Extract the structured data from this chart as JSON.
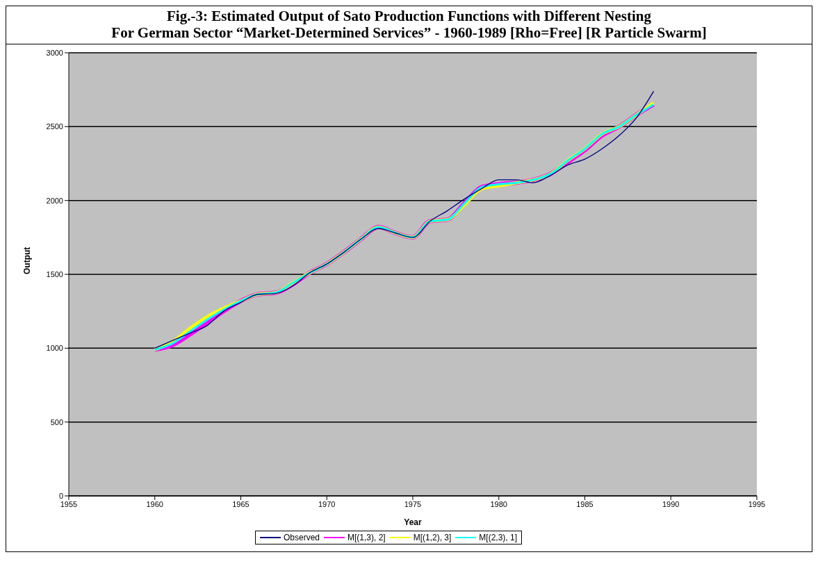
{
  "chart_data": {
    "type": "line",
    "title": "Fig.-3: Estimated Output of Sato Production Functions with Different Nesting",
    "subtitle": "For German Sector “Market-Determined Services” - 1960-1989 [Rho=Free] [R Particle Swarm]",
    "xlabel": "Year",
    "ylabel": "Output",
    "x": [
      1960,
      1961,
      1962,
      1963,
      1964,
      1965,
      1966,
      1967,
      1968,
      1969,
      1970,
      1971,
      1972,
      1973,
      1974,
      1975,
      1976,
      1977,
      1978,
      1979,
      1980,
      1981,
      1982,
      1983,
      1984,
      1985,
      1986,
      1987,
      1988,
      1989
    ],
    "series": [
      {
        "name": "Observed",
        "color": "#000080",
        "values": [
          1000,
          1050,
          1100,
          1150,
          1250,
          1310,
          1365,
          1370,
          1420,
          1510,
          1570,
          1650,
          1740,
          1810,
          1780,
          1750,
          1860,
          1930,
          2010,
          2080,
          2140,
          2140,
          2120,
          2170,
          2240,
          2280,
          2350,
          2440,
          2560,
          2740
        ]
      },
      {
        "name": "M[(1,3), 2]",
        "color": "#ff00ff",
        "values": [
          990,
          1020,
          1090,
          1170,
          1250,
          1320,
          1365,
          1375,
          1430,
          1510,
          1570,
          1650,
          1740,
          1820,
          1780,
          1750,
          1860,
          1870,
          1980,
          2090,
          2110,
          2120,
          2140,
          2180,
          2260,
          2340,
          2440,
          2500,
          2580,
          2650
        ]
      },
      {
        "name": "M[(1,2), 3]",
        "color": "#ffff00",
        "values": [
          990,
          1040,
          1130,
          1210,
          1270,
          1320,
          1365,
          1375,
          1440,
          1510,
          1570,
          1650,
          1740,
          1820,
          1780,
          1750,
          1860,
          1870,
          1970,
          2080,
          2100,
          2120,
          2140,
          2180,
          2270,
          2350,
          2450,
          2500,
          2580,
          2660
        ]
      },
      {
        "name": "M[(2,3), 1]",
        "color": "#00ffff",
        "values": [
          990,
          1030,
          1110,
          1190,
          1260,
          1320,
          1365,
          1375,
          1440,
          1510,
          1570,
          1650,
          1740,
          1820,
          1780,
          1750,
          1860,
          1870,
          1980,
          2090,
          2110,
          2120,
          2140,
          2180,
          2270,
          2350,
          2450,
          2500,
          2580,
          2650
        ]
      }
    ],
    "xlim": [
      1955,
      1995
    ],
    "xticks": [
      1955,
      1960,
      1965,
      1970,
      1975,
      1980,
      1985,
      1990,
      1995
    ],
    "ylim": [
      0,
      3000
    ],
    "yticks": [
      0,
      500,
      1000,
      1500,
      2000,
      2500,
      3000
    ],
    "grid": "y",
    "legend": "bottom",
    "marker": "none",
    "line_style": "solid"
  }
}
